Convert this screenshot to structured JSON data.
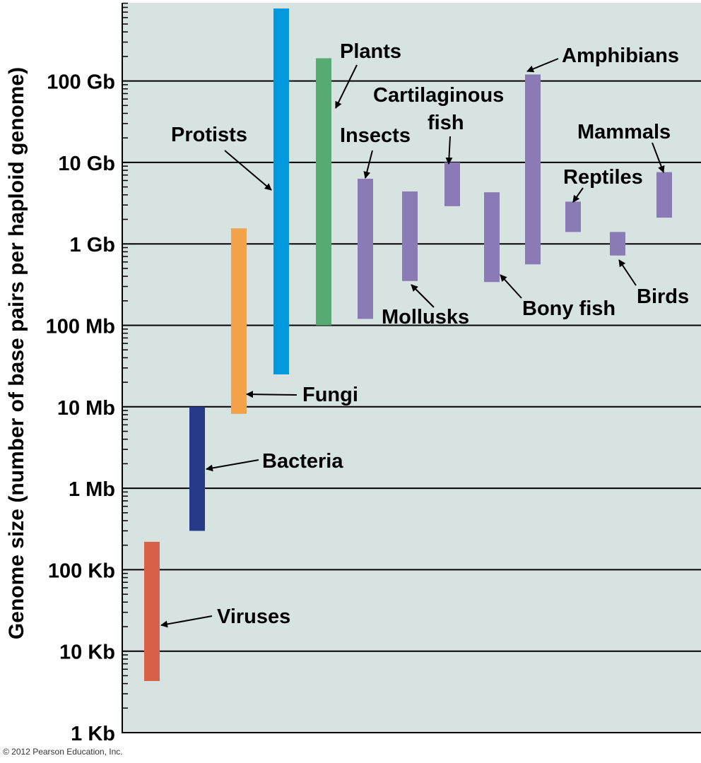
{
  "chart_data": {
    "type": "bar",
    "title": "",
    "ylabel": "Genome size (number of base pairs per haploid genome)",
    "xlabel": "",
    "y_scale": "log",
    "ylim_bp": [
      1000,
      1000000000000
    ],
    "yticks": [
      {
        "label": "1 Kb",
        "value": 1000
      },
      {
        "label": "10 Kb",
        "value": 10000
      },
      {
        "label": "100 Kb",
        "value": 100000
      },
      {
        "label": "1 Mb",
        "value": 1000000
      },
      {
        "label": "10 Mb",
        "value": 10000000
      },
      {
        "label": "100 Mb",
        "value": 100000000
      },
      {
        "label": "1 Gb",
        "value": 1000000000
      },
      {
        "label": "10 Gb",
        "value": 10000000000
      },
      {
        "label": "100 Gb",
        "value": 100000000000
      }
    ],
    "grid": true,
    "series": [
      {
        "name": "Viruses",
        "min_bp": 4300,
        "max_bp": 220000,
        "color": "#d9604b"
      },
      {
        "name": "Bacteria",
        "min_bp": 300000,
        "max_bp": 10000000,
        "color": "#253b8a"
      },
      {
        "name": "Fungi",
        "min_bp": 8200000,
        "max_bp": 1550000000,
        "color": "#f4a24a"
      },
      {
        "name": "Protists",
        "min_bp": 25000000,
        "max_bp": 900000000000,
        "color": "#0099e0"
      },
      {
        "name": "Plants",
        "min_bp": 100000000,
        "max_bp": 190000000000,
        "color": "#56aa72"
      },
      {
        "name": "Insects",
        "min_bp": 120000000,
        "max_bp": 6300000000,
        "color": "#8a7ab5"
      },
      {
        "name": "Mollusks",
        "min_bp": 350000000,
        "max_bp": 4400000000,
        "color": "#8a7ab5"
      },
      {
        "name": "Cartilaginous fish",
        "min_bp": 2900000000,
        "max_bp": 10000000000,
        "color": "#8a7ab5"
      },
      {
        "name": "Bony fish",
        "min_bp": 340000000,
        "max_bp": 4300000000,
        "color": "#8a7ab5"
      },
      {
        "name": "Amphibians",
        "min_bp": 560000000,
        "max_bp": 120000000000,
        "color": "#8a7ab5"
      },
      {
        "name": "Reptiles",
        "min_bp": 1400000000,
        "max_bp": 3300000000,
        "color": "#8a7ab5"
      },
      {
        "name": "Birds",
        "min_bp": 720000000,
        "max_bp": 1400000000,
        "color": "#8a7ab5"
      },
      {
        "name": "Mammals",
        "min_bp": 2100000000,
        "max_bp": 7600000000,
        "color": "#8a7ab5"
      }
    ]
  },
  "colors": {
    "background": "#d6e3e0",
    "gridline": "#000000",
    "axis": "#000000"
  },
  "credit": "© 2012 Pearson Education, Inc."
}
